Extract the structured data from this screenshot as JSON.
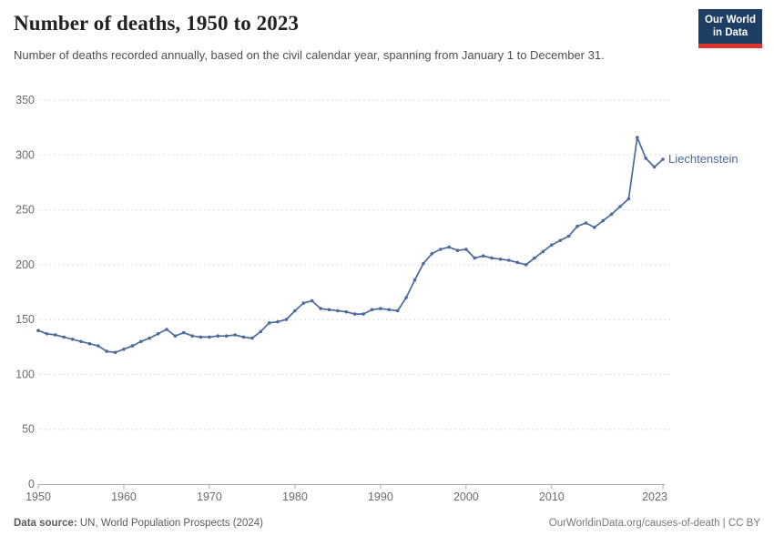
{
  "header": {
    "title": "Number of deaths, 1950 to 2023",
    "subtitle": "Number of deaths recorded annually, based on the civil calendar year, spanning from January 1 to December 31.",
    "logo": {
      "line1": "Our World",
      "line2": "in Data",
      "bg_color": "#1d3d63",
      "accent_color": "#dc352d"
    }
  },
  "chart_data": {
    "type": "line",
    "title": "Number of deaths, 1950 to 2023",
    "xlabel": "",
    "ylabel": "",
    "xlim": [
      1950,
      2023
    ],
    "ylim": [
      0,
      350
    ],
    "x_ticks": [
      1950,
      1960,
      1970,
      1980,
      1990,
      2000,
      2010,
      2023
    ],
    "y_ticks": [
      0,
      50,
      100,
      150,
      200,
      250,
      300,
      350
    ],
    "grid": "horizontal-dashed",
    "legend_position": "end-of-line-label",
    "series": [
      {
        "name": "Liechtenstein",
        "color": "#4C6A9C",
        "x": [
          1950,
          1951,
          1952,
          1953,
          1954,
          1955,
          1956,
          1957,
          1958,
          1959,
          1960,
          1961,
          1962,
          1963,
          1964,
          1965,
          1966,
          1967,
          1968,
          1969,
          1970,
          1971,
          1972,
          1973,
          1974,
          1975,
          1976,
          1977,
          1978,
          1979,
          1980,
          1981,
          1982,
          1983,
          1984,
          1985,
          1986,
          1987,
          1988,
          1989,
          1990,
          1991,
          1992,
          1993,
          1994,
          1995,
          1996,
          1997,
          1998,
          1999,
          2000,
          2001,
          2002,
          2003,
          2004,
          2005,
          2006,
          2007,
          2008,
          2009,
          2010,
          2011,
          2012,
          2013,
          2014,
          2015,
          2016,
          2017,
          2018,
          2019,
          2020,
          2021,
          2022,
          2023
        ],
        "values": [
          140,
          137,
          136,
          134,
          132,
          130,
          128,
          126,
          121,
          120,
          123,
          126,
          130,
          133,
          137,
          141,
          135,
          138,
          135,
          134,
          134,
          135,
          135,
          136,
          134,
          133,
          139,
          147,
          148,
          150,
          158,
          165,
          167,
          160,
          159,
          158,
          157,
          155,
          155,
          159,
          160,
          159,
          158,
          170,
          186,
          201,
          210,
          214,
          216,
          213,
          214,
          206,
          208,
          206,
          205,
          204,
          202,
          200,
          206,
          212,
          218,
          222,
          226,
          235,
          238,
          234,
          240,
          246,
          253,
          260,
          316,
          297,
          289,
          296
        ]
      }
    ]
  },
  "footer": {
    "source_label": "Data source:",
    "source_text": " UN, World Population Prospects (2024)",
    "credit": "OurWorldinData.org/causes-of-death | CC BY"
  },
  "colors": {
    "gridline": "#dcdcdc",
    "axis": "#a8a8a8",
    "tick_text": "#6b6b6b"
  }
}
